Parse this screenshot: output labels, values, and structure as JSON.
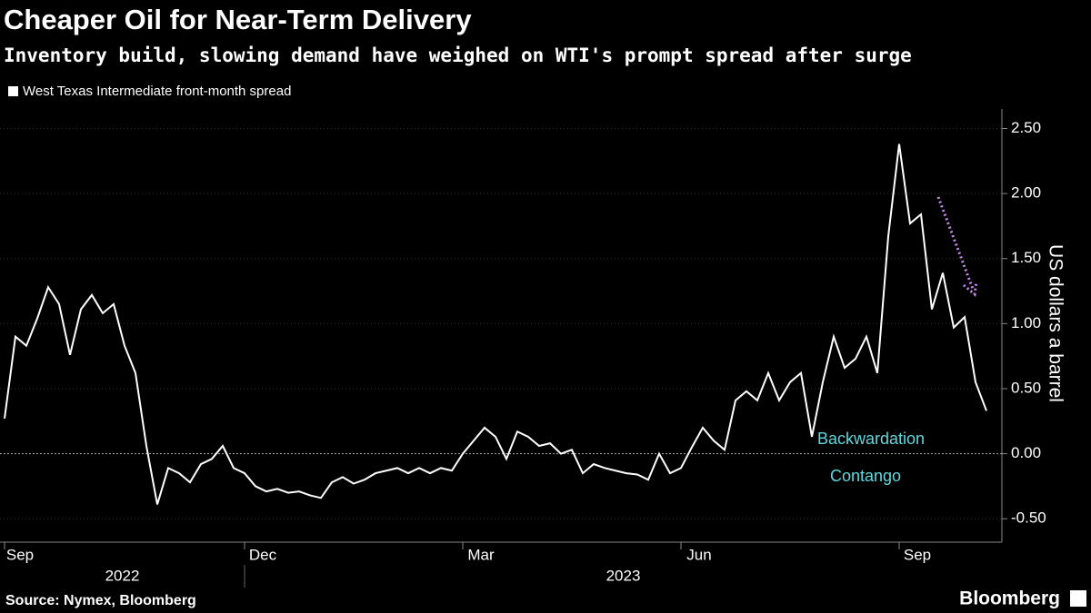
{
  "chart_data": {
    "type": "line",
    "title": "Cheaper Oil for Near-Term Delivery",
    "subtitle": "Inventory build, slowing demand have weighed on WTI's prompt spread after surge",
    "y_label": "US dollars a barrel",
    "source": "Source: Nymex, Bloomberg",
    "brand": "Bloomberg",
    "annotations": [
      "Backwardation",
      "Contango"
    ],
    "years": [
      "2022",
      "2023"
    ],
    "categories": [
      "Sep",
      null,
      null,
      null,
      null,
      null,
      null,
      null,
      null,
      null,
      null,
      null,
      null,
      null,
      null,
      null,
      null,
      null,
      null,
      null,
      null,
      null,
      "Dec",
      null,
      null,
      null,
      null,
      null,
      null,
      null,
      null,
      null,
      null,
      null,
      null,
      null,
      null,
      null,
      null,
      null,
      null,
      null,
      "Mar",
      null,
      null,
      null,
      null,
      null,
      null,
      null,
      null,
      null,
      null,
      null,
      null,
      null,
      null,
      null,
      null,
      null,
      null,
      null,
      "Jun",
      null,
      null,
      null,
      null,
      null,
      null,
      null,
      null,
      null,
      null,
      null,
      null,
      null,
      null,
      null,
      null,
      null,
      null,
      null,
      "Sep",
      null,
      null,
      null,
      null,
      null,
      null,
      null,
      null
    ],
    "series": [
      {
        "name": "West Texas Intermediate front-month spread",
        "color": "#ffffff",
        "values": [
          0.27,
          0.9,
          0.83,
          1.04,
          1.28,
          1.15,
          0.76,
          1.11,
          1.22,
          1.08,
          1.15,
          0.83,
          0.62,
          0.06,
          -0.39,
          -0.11,
          -0.15,
          -0.22,
          -0.08,
          -0.04,
          0.06,
          -0.11,
          -0.15,
          -0.25,
          -0.29,
          -0.27,
          -0.3,
          -0.29,
          -0.32,
          -0.34,
          -0.22,
          -0.18,
          -0.23,
          -0.2,
          -0.15,
          -0.13,
          -0.11,
          -0.15,
          -0.11,
          -0.15,
          -0.11,
          -0.13,
          0.0,
          0.1,
          0.2,
          0.13,
          -0.04,
          0.17,
          0.13,
          0.06,
          0.08,
          0.0,
          0.03,
          -0.15,
          -0.08,
          -0.11,
          -0.13,
          -0.15,
          -0.16,
          -0.2,
          0.0,
          -0.15,
          -0.11,
          0.05,
          0.2,
          0.1,
          0.03,
          0.41,
          0.48,
          0.41,
          0.62,
          0.41,
          0.55,
          0.62,
          0.13,
          0.55,
          0.9,
          0.66,
          0.73,
          0.9,
          0.62,
          1.67,
          2.38,
          1.77,
          1.84,
          1.11,
          1.39,
          0.97,
          1.05,
          0.55,
          0.33
        ]
      }
    ],
    "ylim": [
      -0.68,
      2.65
    ],
    "yticks": [
      {
        "value": -0.5,
        "label": "-0.50"
      },
      {
        "value": 0,
        "label": "0.00"
      },
      {
        "value": 0.5,
        "label": "0.50"
      },
      {
        "value": 1,
        "label": "1.00"
      },
      {
        "value": 1.5,
        "label": "1.50"
      },
      {
        "value": 2,
        "label": "2.00"
      },
      {
        "value": 2.5,
        "label": "2.50"
      }
    ],
    "grid": true
  }
}
